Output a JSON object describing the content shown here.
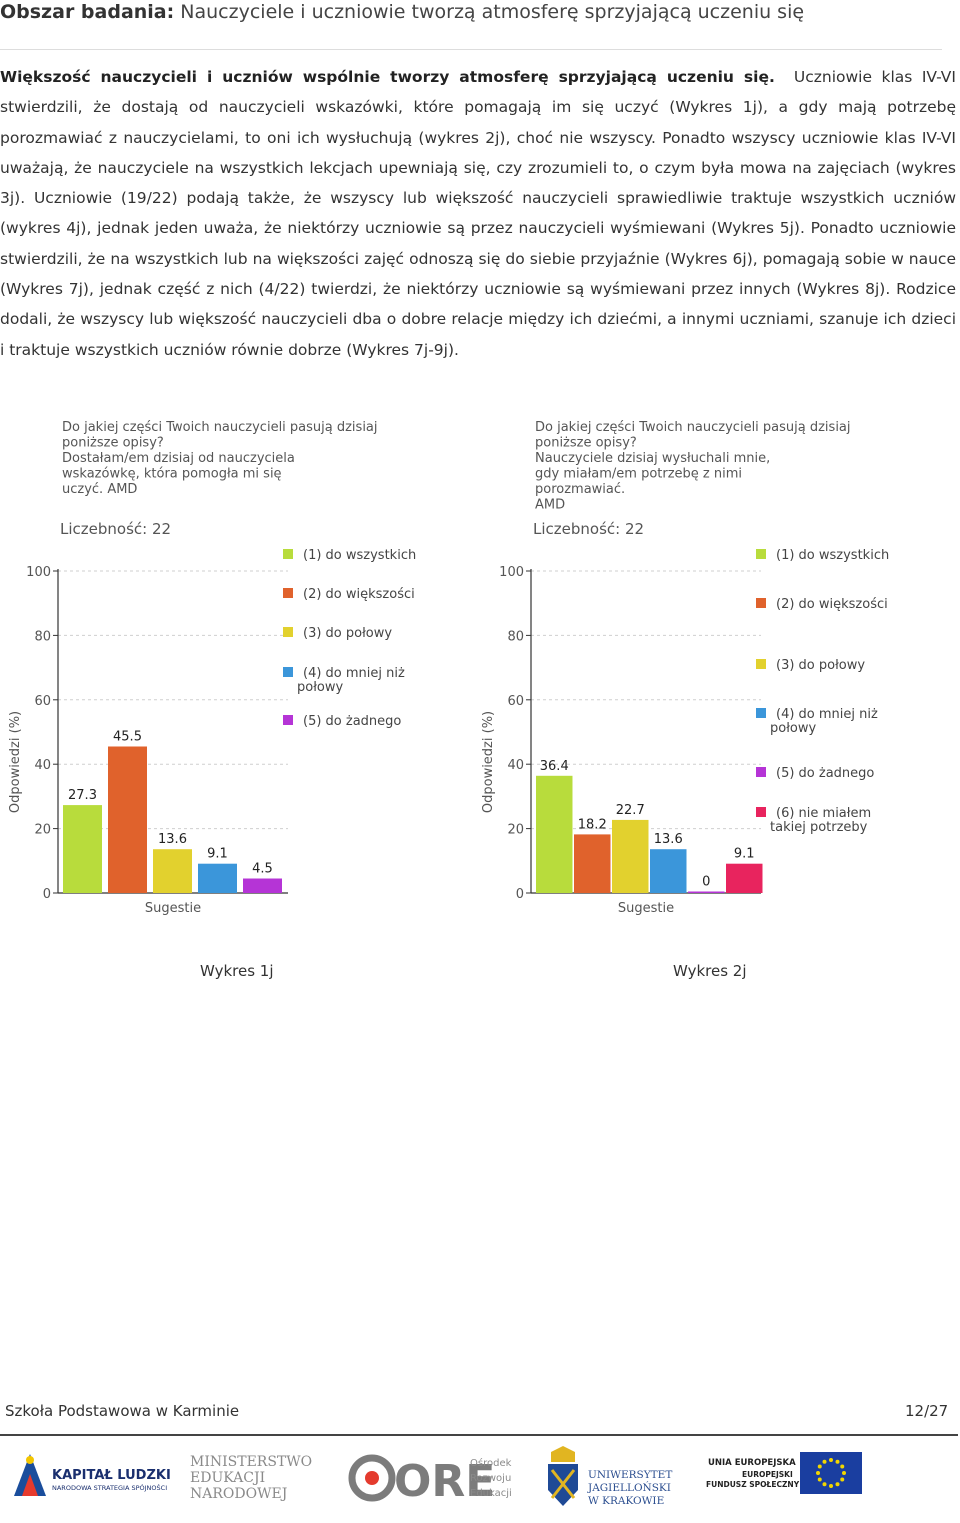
{
  "header": {
    "title_bold": "Obszar badania:",
    "title_rest": "Nauczyciele i uczniowie tworzą atmosferę sprzyjającą uczeniu się"
  },
  "body": {
    "lead_bold": "Większość nauczycieli i uczniów wspólnie tworzy atmosferę sprzyjającą uczeniu się.",
    "text": "Uczniowie klas IV-VI stwierdzili, że dostają od nauczycieli wskazówki, które pomagają im się uczyć (Wykres 1j), a gdy mają potrzebę porozmawiać z nauczycielami, to oni ich wysłuchują (wykres 2j), choć nie wszyscy. Ponadto wszyscy uczniowie klas IV-VI uważają, że nauczyciele na wszystkich lekcjach upewniają się, czy zrozumieli to, o czym była mowa na zajęciach (wykres 3j). Uczniowie (19/22) podają także, że wszyscy lub większość nauczycieli sprawiedliwie traktuje wszystkich uczniów (wykres 4j), jednak jeden uważa, że niektórzy uczniowie są przez nauczycieli wyśmiewani (Wykres 5j). Ponadto uczniowie stwierdzili, że na wszystkich lub na większości zajęć odnoszą się do siebie przyjaźnie (Wykres 6j), pomagają sobie w nauce (Wykres 7j), jednak część z nich (4/22) twierdzi, że niektórzy uczniowie są wyśmiewani przez innych (Wykres 8j). Rodzice dodali, że wszyscy lub większość nauczycieli dba o dobre relacje między ich dziećmi, a innymi uczniami, szanuje ich dzieci i traktuje wszystkich uczniów równie dobrze (Wykres 7j-9j)."
  },
  "chart_data": [
    {
      "type": "bar",
      "question": [
        "Do jakiej części Twoich nauczycieli pasują dzisiaj",
        "poniższe opisy?",
        "Dostałam/em dzisiaj od nauczyciela",
        "wskazówkę, która pomogła mi się",
        "uczyć. AMD"
      ],
      "count_label": "Liczebność: 22",
      "ylabel": "Odpowiedzi (%)",
      "xlabel": "Sugestie",
      "ylim": [
        0,
        100
      ],
      "yticks": [
        "0",
        "20",
        "40",
        "60",
        "80",
        "100"
      ],
      "categories": [
        "(1) do wszystkich",
        "(2) do większości",
        "(3) do połowy",
        "(4) do mniej niż połowy",
        "(5) do żadnego"
      ],
      "values": [
        27.3,
        45.5,
        13.6,
        9.1,
        4.5
      ],
      "value_labels": [
        "27.3",
        "45.5",
        "13.6",
        "9.1",
        "4.5"
      ],
      "colors": [
        "#b8dc3c",
        "#e0622c",
        "#e2d12e",
        "#3b96da",
        "#b534d6"
      ],
      "caption": "Wykres 1j"
    },
    {
      "type": "bar",
      "question": [
        "Do jakiej części Twoich nauczycieli pasują dzisiaj",
        "poniższe opisy?",
        "Nauczyciele dzisiaj wysłuchali mnie,",
        "gdy miałam/em potrzebę z nimi",
        "porozmawiać.",
        "AMD"
      ],
      "count_label": "Liczebność: 22",
      "ylabel": "Odpowiedzi (%)",
      "xlabel": "Sugestie",
      "ylim": [
        0,
        100
      ],
      "yticks": [
        "0",
        "20",
        "40",
        "60",
        "80",
        "100"
      ],
      "categories": [
        "(1) do wszystkich",
        "(2) do większości",
        "(3) do połowy",
        "(4) do mniej niż połowy",
        "(5) do żadnego",
        "(6) nie miałem takiej potrzeby"
      ],
      "values": [
        36.4,
        18.2,
        22.7,
        13.6,
        0,
        9.1
      ],
      "value_labels": [
        "36.4",
        "18.2",
        "22.7",
        "13.6",
        "0",
        "9.1"
      ],
      "colors": [
        "#b8dc3c",
        "#e0622c",
        "#e2d12e",
        "#3b96da",
        "#b534d6",
        "#e8245e"
      ],
      "caption": "Wykres 2j"
    }
  ],
  "footer": {
    "school": "Szkoła Podstawowa w Karminie",
    "page": "12/27"
  },
  "logos": {
    "kl_line1": "KAPITAŁ LUDZKI",
    "kl_line2": "NARODOWA STRATEGIA SPÓJNOŚCI",
    "men_line1": "MINISTERSTWO",
    "men_line2": "EDUKACJI",
    "men_line3": "NARODOWEJ",
    "ore_word": "ORE",
    "ore_line1": "Ośrodek",
    "ore_line2": "Rozwoju",
    "ore_line3": "Edukacji",
    "uj_line1": "UNIWERSYTET",
    "uj_line2": "JAGIELLOŃSKI",
    "uj_line3": "W KRAKOWIE",
    "eu_line1": "UNIA EUROPEJSKA",
    "eu_line2": "EUROPEJSKI",
    "eu_line3": "FUNDUSZ SPOŁECZNY"
  }
}
